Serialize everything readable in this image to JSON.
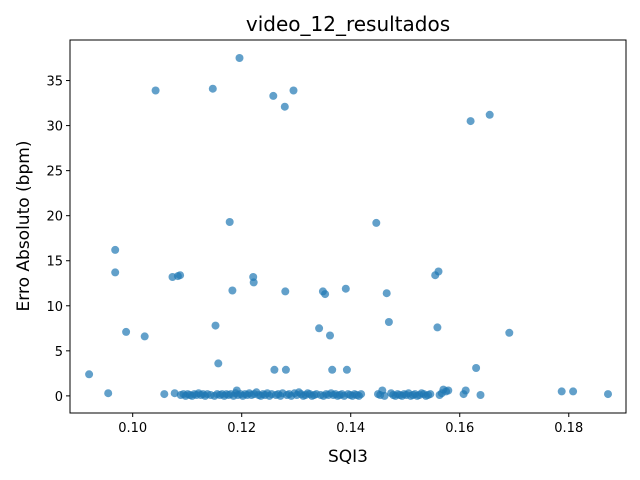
{
  "chart_data": {
    "type": "scatter",
    "title": "video_12_resultados",
    "xlabel": "SQI3",
    "ylabel": "Erro Absoluto (bpm)",
    "xlim": [
      0.0885,
      0.1905
    ],
    "ylim": [
      -1.9,
      39.5
    ],
    "xticks": [
      0.1,
      0.12,
      0.14,
      0.16,
      0.18
    ],
    "xtick_labels": [
      "0.10",
      "0.12",
      "0.14",
      "0.16",
      "0.18"
    ],
    "yticks": [
      0,
      5,
      10,
      15,
      20,
      25,
      30,
      35
    ],
    "ytick_labels": [
      "0",
      "5",
      "10",
      "15",
      "20",
      "25",
      "30",
      "35"
    ],
    "grid": false,
    "marker_color": "#1f77b4",
    "marker_alpha": 0.7,
    "points": [
      [
        0.092,
        2.4
      ],
      [
        0.0955,
        0.3
      ],
      [
        0.0968,
        16.2
      ],
      [
        0.0968,
        13.7
      ],
      [
        0.0988,
        7.1
      ],
      [
        0.1022,
        6.6
      ],
      [
        0.1042,
        33.9
      ],
      [
        0.1058,
        0.2
      ],
      [
        0.1073,
        13.2
      ],
      [
        0.1077,
        0.3
      ],
      [
        0.1083,
        13.3
      ],
      [
        0.1087,
        13.4
      ],
      [
        0.1088,
        0.1
      ],
      [
        0.1093,
        0.2
      ],
      [
        0.1097,
        0.0
      ],
      [
        0.1101,
        0.2
      ],
      [
        0.1105,
        0.1
      ],
      [
        0.1109,
        0.0
      ],
      [
        0.1113,
        0.2
      ],
      [
        0.1117,
        0.1
      ],
      [
        0.1121,
        0.3
      ],
      [
        0.1125,
        0.1
      ],
      [
        0.1129,
        0.2
      ],
      [
        0.1133,
        0.0
      ],
      [
        0.1137,
        0.2
      ],
      [
        0.1143,
        0.1
      ],
      [
        0.1147,
        34.1
      ],
      [
        0.115,
        0.0
      ],
      [
        0.1152,
        7.8
      ],
      [
        0.1155,
        0.2
      ],
      [
        0.1157,
        3.6
      ],
      [
        0.116,
        0.1
      ],
      [
        0.1164,
        0.2
      ],
      [
        0.1168,
        0.0
      ],
      [
        0.1172,
        0.2
      ],
      [
        0.1176,
        0.1
      ],
      [
        0.1178,
        19.3
      ],
      [
        0.118,
        0.2
      ],
      [
        0.1183,
        11.7
      ],
      [
        0.1185,
        0.0
      ],
      [
        0.1189,
        0.3
      ],
      [
        0.1191,
        0.6
      ],
      [
        0.1193,
        0.1
      ],
      [
        0.1196,
        37.5
      ],
      [
        0.1198,
        0.2
      ],
      [
        0.1202,
        0.0
      ],
      [
        0.1206,
        0.2
      ],
      [
        0.121,
        0.1
      ],
      [
        0.1214,
        0.3
      ],
      [
        0.1218,
        0.1
      ],
      [
        0.1221,
        13.2
      ],
      [
        0.1222,
        12.6
      ],
      [
        0.1223,
        0.2
      ],
      [
        0.1227,
        0.4
      ],
      [
        0.1231,
        0.1
      ],
      [
        0.1235,
        0.0
      ],
      [
        0.1239,
        0.2
      ],
      [
        0.1243,
        0.1
      ],
      [
        0.1247,
        0.3
      ],
      [
        0.1251,
        0.0
      ],
      [
        0.1255,
        0.2
      ],
      [
        0.1258,
        33.3
      ],
      [
        0.126,
        2.9
      ],
      [
        0.1263,
        0.1
      ],
      [
        0.1267,
        0.2
      ],
      [
        0.1271,
        0.0
      ],
      [
        0.1275,
        0.3
      ],
      [
        0.1279,
        32.1
      ],
      [
        0.128,
        11.6
      ],
      [
        0.1281,
        2.9
      ],
      [
        0.1283,
        0.1
      ],
      [
        0.1287,
        0.2
      ],
      [
        0.1291,
        0.0
      ],
      [
        0.1295,
        33.9
      ],
      [
        0.1297,
        0.3
      ],
      [
        0.1301,
        0.1
      ],
      [
        0.1305,
        0.4
      ],
      [
        0.1309,
        0.2
      ],
      [
        0.1313,
        0.0
      ],
      [
        0.1317,
        0.1
      ],
      [
        0.1321,
        0.3
      ],
      [
        0.1325,
        0.2
      ],
      [
        0.1329,
        0.0
      ],
      [
        0.1333,
        0.1
      ],
      [
        0.1337,
        0.2
      ],
      [
        0.1342,
        7.5
      ],
      [
        0.1345,
        0.1
      ],
      [
        0.1349,
        11.6
      ],
      [
        0.135,
        0.0
      ],
      [
        0.1353,
        11.3
      ],
      [
        0.1355,
        0.2
      ],
      [
        0.1359,
        0.1
      ],
      [
        0.1362,
        6.7
      ],
      [
        0.1364,
        0.3
      ],
      [
        0.1366,
        2.9
      ],
      [
        0.1368,
        0.1
      ],
      [
        0.1372,
        0.2
      ],
      [
        0.1376,
        0.0
      ],
      [
        0.138,
        0.1
      ],
      [
        0.1384,
        0.2
      ],
      [
        0.1388,
        0.0
      ],
      [
        0.1391,
        11.9
      ],
      [
        0.1393,
        2.9
      ],
      [
        0.1395,
        0.2
      ],
      [
        0.1399,
        0.1
      ],
      [
        0.1403,
        0.0
      ],
      [
        0.1407,
        0.2
      ],
      [
        0.1411,
        0.1
      ],
      [
        0.1415,
        0.0
      ],
      [
        0.1419,
        0.2
      ],
      [
        0.1447,
        19.2
      ],
      [
        0.145,
        0.2
      ],
      [
        0.1454,
        0.1
      ],
      [
        0.1458,
        0.6
      ],
      [
        0.1462,
        0.0
      ],
      [
        0.1466,
        11.4
      ],
      [
        0.147,
        8.2
      ],
      [
        0.1474,
        0.3
      ],
      [
        0.1478,
        0.1
      ],
      [
        0.1482,
        0.0
      ],
      [
        0.1486,
        0.2
      ],
      [
        0.149,
        0.1
      ],
      [
        0.1494,
        0.0
      ],
      [
        0.1498,
        0.2
      ],
      [
        0.1502,
        0.1
      ],
      [
        0.1506,
        0.3
      ],
      [
        0.151,
        0.0
      ],
      [
        0.1514,
        0.1
      ],
      [
        0.1518,
        0.2
      ],
      [
        0.1522,
        0.0
      ],
      [
        0.1526,
        0.1
      ],
      [
        0.153,
        0.3
      ],
      [
        0.1534,
        0.2
      ],
      [
        0.1538,
        0.0
      ],
      [
        0.1542,
        0.1
      ],
      [
        0.1546,
        0.2
      ],
      [
        0.1555,
        13.4
      ],
      [
        0.1559,
        7.6
      ],
      [
        0.1561,
        13.8
      ],
      [
        0.1563,
        0.1
      ],
      [
        0.1567,
        0.3
      ],
      [
        0.157,
        0.7
      ],
      [
        0.1575,
        0.5
      ],
      [
        0.1579,
        0.6
      ],
      [
        0.1607,
        0.2
      ],
      [
        0.1611,
        0.6
      ],
      [
        0.162,
        30.5
      ],
      [
        0.163,
        3.1
      ],
      [
        0.1638,
        0.1
      ],
      [
        0.1655,
        31.2
      ],
      [
        0.1691,
        7.0
      ],
      [
        0.1787,
        0.5
      ],
      [
        0.1808,
        0.5
      ],
      [
        0.1872,
        0.2
      ]
    ]
  }
}
